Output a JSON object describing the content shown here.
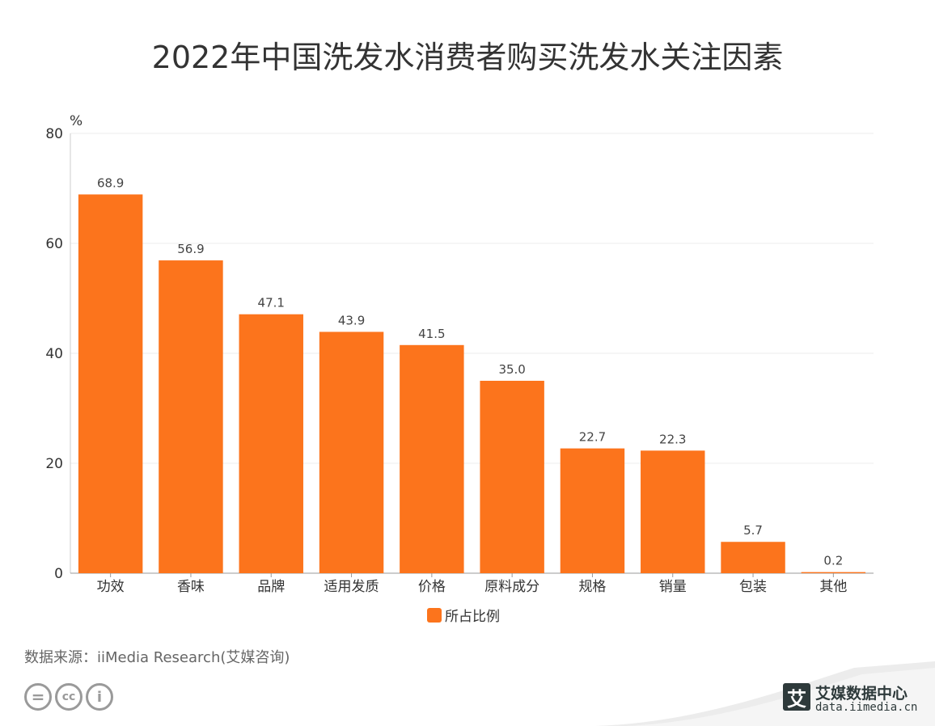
{
  "title": "2022年中国洗发水消费者购买洗发水关注因素",
  "chart_data": {
    "type": "bar",
    "title": "2022年中国洗发水消费者购买洗发水关注因素",
    "ylabel": "%",
    "ylim": [
      0,
      80
    ],
    "yticks": [
      "0",
      "20",
      "40",
      "60",
      "80"
    ],
    "grid": true,
    "legend_position": "bottom",
    "categories": [
      "功效",
      "香味",
      "品牌",
      "适用发质",
      "价格",
      "原料成分",
      "规格",
      "销量",
      "包装",
      "其他"
    ],
    "series": [
      {
        "name": "所占比例",
        "color": "#fc741c",
        "values": [
          68.9,
          56.9,
          47.1,
          43.9,
          41.5,
          35.0,
          22.7,
          22.3,
          5.7,
          0.2
        ],
        "labels": [
          "68.9",
          "56.9",
          "47.1",
          "43.9",
          "41.5",
          "35.0",
          "22.7",
          "22.3",
          "5.7",
          "0.2"
        ]
      }
    ]
  },
  "source": "数据来源：iiMedia Research(艾媒咨询)",
  "license_icons": [
    "equals-icon",
    "cc-icon",
    "person-icon"
  ],
  "license_glyphs": [
    "=",
    "cc",
    "i"
  ],
  "brand": {
    "logo_char": "艾",
    "name": "艾媒数据中心",
    "url": "data.iimedia.cn"
  }
}
